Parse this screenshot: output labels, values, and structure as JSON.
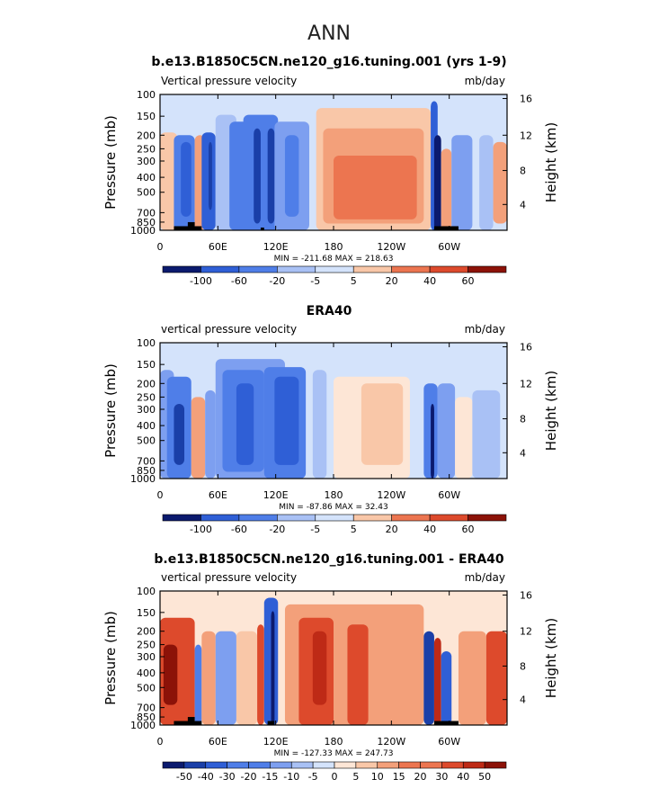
{
  "page": {
    "title": "ANN"
  },
  "chart_data": [
    {
      "type": "heatmap",
      "title": "b.e13.B1850C5CN.ne120_g16.tuning.001 (yrs 1-9)",
      "left_label": "Vertical pressure velocity",
      "right_label": "mb/day",
      "xlabel": "",
      "ylabel": "Pressure (mb)",
      "y2label": "Height (km)",
      "x_ticks": [
        "0",
        "60E",
        "120E",
        "180",
        "120W",
        "60W"
      ],
      "y_ticks": [
        "100",
        "150",
        "200",
        "250",
        "300",
        "400",
        "500",
        "700",
        "850",
        "1000"
      ],
      "y2_ticks": [
        "16",
        "12",
        "8",
        "4"
      ],
      "ylim": [
        1000,
        100
      ],
      "min_max": "MIN = -211.68   MAX = 218.63",
      "colorbar_labels": [
        "-100",
        "-60",
        "-20",
        "-5",
        "5",
        "20",
        "40",
        "60"
      ]
    },
    {
      "type": "heatmap",
      "title": "ERA40",
      "left_label": "vertical pressure velocity",
      "right_label": "mb/day",
      "xlabel": "",
      "ylabel": "Pressure (mb)",
      "y2label": "Height (km)",
      "x_ticks": [
        "0",
        "60E",
        "120E",
        "180",
        "120W",
        "60W"
      ],
      "y_ticks": [
        "100",
        "150",
        "200",
        "250",
        "300",
        "400",
        "500",
        "700",
        "850",
        "1000"
      ],
      "y2_ticks": [
        "16",
        "12",
        "8",
        "4"
      ],
      "ylim": [
        1000,
        100
      ],
      "min_max": "MIN = -87.86   MAX = 32.43",
      "colorbar_labels": [
        "-100",
        "-60",
        "-20",
        "-5",
        "5",
        "20",
        "40",
        "60"
      ]
    },
    {
      "type": "heatmap",
      "title": "b.e13.B1850C5CN.ne120_g16.tuning.001 - ERA40",
      "left_label": "vertical pressure velocity",
      "right_label": "mb/day",
      "xlabel": "",
      "ylabel": "Pressure (mb)",
      "y2label": "Height (km)",
      "x_ticks": [
        "0",
        "60E",
        "120E",
        "180",
        "120W",
        "60W"
      ],
      "y_ticks": [
        "100",
        "150",
        "200",
        "250",
        "300",
        "400",
        "500",
        "700",
        "850",
        "1000"
      ],
      "y2_ticks": [
        "16",
        "12",
        "8",
        "4"
      ],
      "ylim": [
        1000,
        100
      ],
      "min_max": "MIN = -127.33   MAX = 247.73",
      "colorbar_labels": [
        "-50",
        "-40",
        "-30",
        "-20",
        "-15",
        "-10",
        "-5",
        "0",
        "5",
        "10",
        "15",
        "20",
        "30",
        "40",
        "50"
      ]
    }
  ],
  "palette": {
    "blues": [
      "#0b1a6e",
      "#1a3fa8",
      "#2f5fd6",
      "#4f7ee8",
      "#7d9ff0",
      "#a9c1f5",
      "#d4e3fb"
    ],
    "reds": [
      "#fde6d6",
      "#f9c7a8",
      "#f3a07a",
      "#ec7550",
      "#dd4a2c",
      "#be2a16",
      "#8c1208"
    ],
    "terrain": "#000000"
  }
}
